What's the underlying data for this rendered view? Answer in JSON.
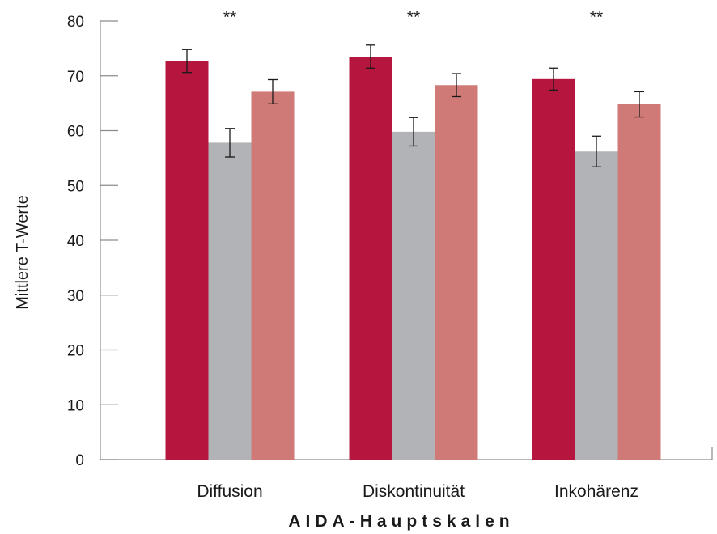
{
  "chart_data": {
    "type": "bar",
    "categories": [
      "Diffusion",
      "Diskontinuität",
      "Inkohärenz"
    ],
    "series": [
      {
        "values": [
          72.7,
          73.5,
          69.4
        ],
        "errors": [
          2.1,
          2.1,
          2.0
        ],
        "color": "#b5163e"
      },
      {
        "values": [
          57.8,
          59.8,
          56.2
        ],
        "errors": [
          2.6,
          2.6,
          2.8
        ],
        "color": "#b1b3b6"
      },
      {
        "values": [
          67.1,
          68.3,
          64.8
        ],
        "errors": [
          2.2,
          2.1,
          2.3
        ],
        "color": "#d07a78"
      }
    ],
    "significance": [
      "**",
      "**",
      "**"
    ],
    "xlabel": "AIDA-Hauptskalen",
    "ylabel": "Mittlere T-Werte",
    "ylim": [
      0,
      80
    ],
    "yticks": [
      0,
      10,
      20,
      30,
      40,
      50,
      60,
      70,
      80
    ],
    "grid": false,
    "legend": "none"
  }
}
